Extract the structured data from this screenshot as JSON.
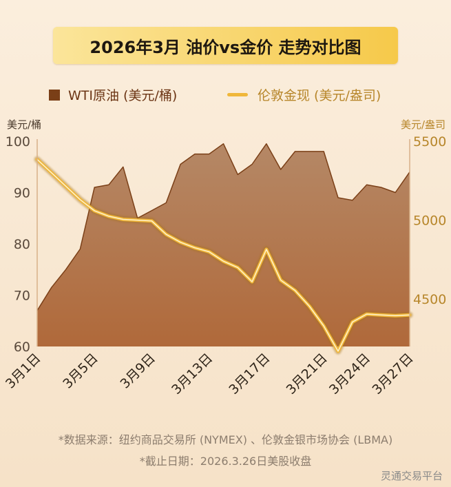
{
  "title": "2026年3月 油价vs金价 走势对比图",
  "legend": {
    "oil": "WTI原油 (美元/桶)",
    "gold": "伦敦金现 (美元/盎司)"
  },
  "colors": {
    "oil_fill": "#ad6d3e",
    "oil_line": "#7a3f17",
    "gold_line": "#f0b73a"
  },
  "units": {
    "left": "美元/桶",
    "right": "美元/盎司"
  },
  "chart_data": {
    "type": "area",
    "x": [
      "3月1日",
      "3月2日",
      "3月3日",
      "3月4日",
      "3月5日",
      "3月6日",
      "3月7日",
      "3月8日",
      "3月9日",
      "3月10日",
      "3月11日",
      "3月12日",
      "3月13日",
      "3月14日",
      "3月15日",
      "3月16日",
      "3月17日",
      "3月18日",
      "3月19日",
      "3月20日",
      "3月21日",
      "3月22日",
      "3月23日",
      "3月24日",
      "3月25日",
      "3月26日",
      "3月27日"
    ],
    "x_tick_labels": [
      "3月1日",
      "3月5日",
      "3月9日",
      "3月13日",
      "3月17日",
      "3月21日",
      "3月24日",
      "3月27日"
    ],
    "x_tick_positions": [
      0,
      4,
      8,
      12,
      16,
      20,
      23,
      26
    ],
    "y_left": {
      "label": "美元/桶",
      "ticks": [
        60,
        70,
        80,
        90,
        100
      ],
      "lim": [
        60,
        100
      ]
    },
    "y_right": {
      "label": "美元/盎司",
      "ticks": [
        4500,
        5000,
        5500
      ],
      "lim": [
        4200,
        5500
      ]
    },
    "series": [
      {
        "name": "WTI原油 (美元/桶)",
        "axis": "left",
        "style": "area",
        "values": [
          67,
          71.5,
          75,
          79,
          91,
          91.5,
          95,
          85,
          86.5,
          88,
          95.5,
          97.5,
          97.5,
          99.5,
          93.5,
          95.5,
          99.5,
          94.5,
          98,
          98,
          98,
          89,
          88.5,
          91.5,
          91,
          90,
          94
        ]
      },
      {
        "name": "伦敦金现 (美元/盎司)",
        "axis": "right",
        "style": "line",
        "values": [
          5385,
          5300,
          5215,
          5130,
          5060,
          5025,
          5005,
          5000,
          4995,
          4910,
          4860,
          4825,
          4800,
          4740,
          4700,
          4610,
          4815,
          4620,
          4555,
          4455,
          4330,
          4170,
          4355,
          4405,
          4400,
          4395,
          4400
        ]
      }
    ]
  },
  "footnotes": [
    "*数据来源：纽约商品交易所 (NYMEX) 、伦敦金银市场协会 (LBMA)",
    "*截止日期：2026.3.26日美股收盘"
  ],
  "brand": "灵通交易平台"
}
